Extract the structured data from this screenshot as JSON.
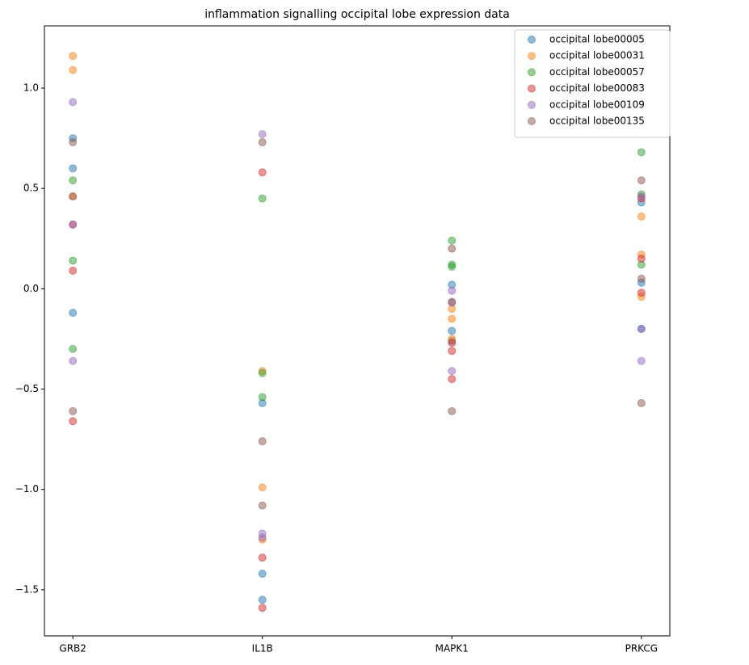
{
  "chart_data": {
    "type": "scatter",
    "title": "inflammation signalling occipital lobe expression data",
    "categories": [
      "GRB2",
      "IL1B",
      "MAPK1",
      "PRKCG"
    ],
    "ylim": [
      -1.73,
      1.31
    ],
    "yticks": [
      {
        "value": -1.5,
        "label": "−1.5"
      },
      {
        "value": -1.0,
        "label": "−1.0"
      },
      {
        "value": -0.5,
        "label": "−0.5"
      },
      {
        "value": 0.0,
        "label": "0.0"
      },
      {
        "value": 0.5,
        "label": "0.5"
      },
      {
        "value": 1.0,
        "label": "1.0"
      }
    ],
    "legend": "upper right",
    "series": [
      {
        "name": "occipital lobe00005",
        "color": "#1f77b4",
        "x": [
          "GRB2",
          "GRB2",
          "GRB2",
          "IL1B",
          "IL1B",
          "IL1B",
          "MAPK1",
          "MAPK1",
          "MAPK1",
          "PRKCG",
          "PRKCG",
          "PRKCG"
        ],
        "values": [
          0.75,
          0.6,
          -0.12,
          -0.57,
          -1.42,
          -1.55,
          0.02,
          -0.21,
          -0.26,
          0.43,
          0.03,
          -0.2
        ]
      },
      {
        "name": "occipital lobe00031",
        "color": "#ff7f0e",
        "x": [
          "GRB2",
          "GRB2",
          "GRB2",
          "IL1B",
          "IL1B",
          "IL1B",
          "MAPK1",
          "MAPK1",
          "MAPK1",
          "PRKCG",
          "PRKCG",
          "PRKCG"
        ],
        "values": [
          1.16,
          1.09,
          0.46,
          -0.41,
          -0.99,
          -1.25,
          -0.1,
          -0.15,
          -0.25,
          0.36,
          0.17,
          -0.04
        ]
      },
      {
        "name": "occipital lobe00057",
        "color": "#2ca02c",
        "x": [
          "GRB2",
          "GRB2",
          "GRB2",
          "IL1B",
          "IL1B",
          "IL1B",
          "MAPK1",
          "MAPK1",
          "MAPK1",
          "PRKCG",
          "PRKCG",
          "PRKCG"
        ],
        "values": [
          0.54,
          0.14,
          -0.3,
          0.45,
          -0.42,
          -0.54,
          0.24,
          0.12,
          0.11,
          0.68,
          0.47,
          0.12
        ]
      },
      {
        "name": "occipital lobe00083",
        "color": "#d62728",
        "x": [
          "GRB2",
          "GRB2",
          "GRB2",
          "IL1B",
          "IL1B",
          "IL1B",
          "MAPK1",
          "MAPK1",
          "MAPK1",
          "PRKCG",
          "PRKCG",
          "PRKCG"
        ],
        "values": [
          0.32,
          0.09,
          -0.66,
          0.58,
          -1.34,
          -1.59,
          -0.27,
          -0.31,
          -0.45,
          0.45,
          0.15,
          -0.02
        ]
      },
      {
        "name": "occipital lobe00109",
        "color": "#9467bd",
        "x": [
          "GRB2",
          "GRB2",
          "GRB2",
          "IL1B",
          "IL1B",
          "IL1B",
          "MAPK1",
          "MAPK1",
          "MAPK1",
          "PRKCG",
          "PRKCG",
          "PRKCG"
        ],
        "values": [
          0.93,
          0.32,
          -0.36,
          0.77,
          -1.22,
          -1.24,
          -0.01,
          -0.07,
          -0.41,
          0.46,
          -0.2,
          -0.36
        ]
      },
      {
        "name": "occipital lobe00135",
        "color": "#8c564b",
        "x": [
          "GRB2",
          "GRB2",
          "GRB2",
          "IL1B",
          "IL1B",
          "IL1B",
          "MAPK1",
          "MAPK1",
          "MAPK1",
          "PRKCG",
          "PRKCG",
          "PRKCG"
        ],
        "values": [
          0.73,
          0.46,
          -0.61,
          0.73,
          -0.76,
          -1.08,
          0.2,
          -0.065,
          -0.61,
          0.54,
          0.05,
          -0.57
        ]
      }
    ]
  }
}
